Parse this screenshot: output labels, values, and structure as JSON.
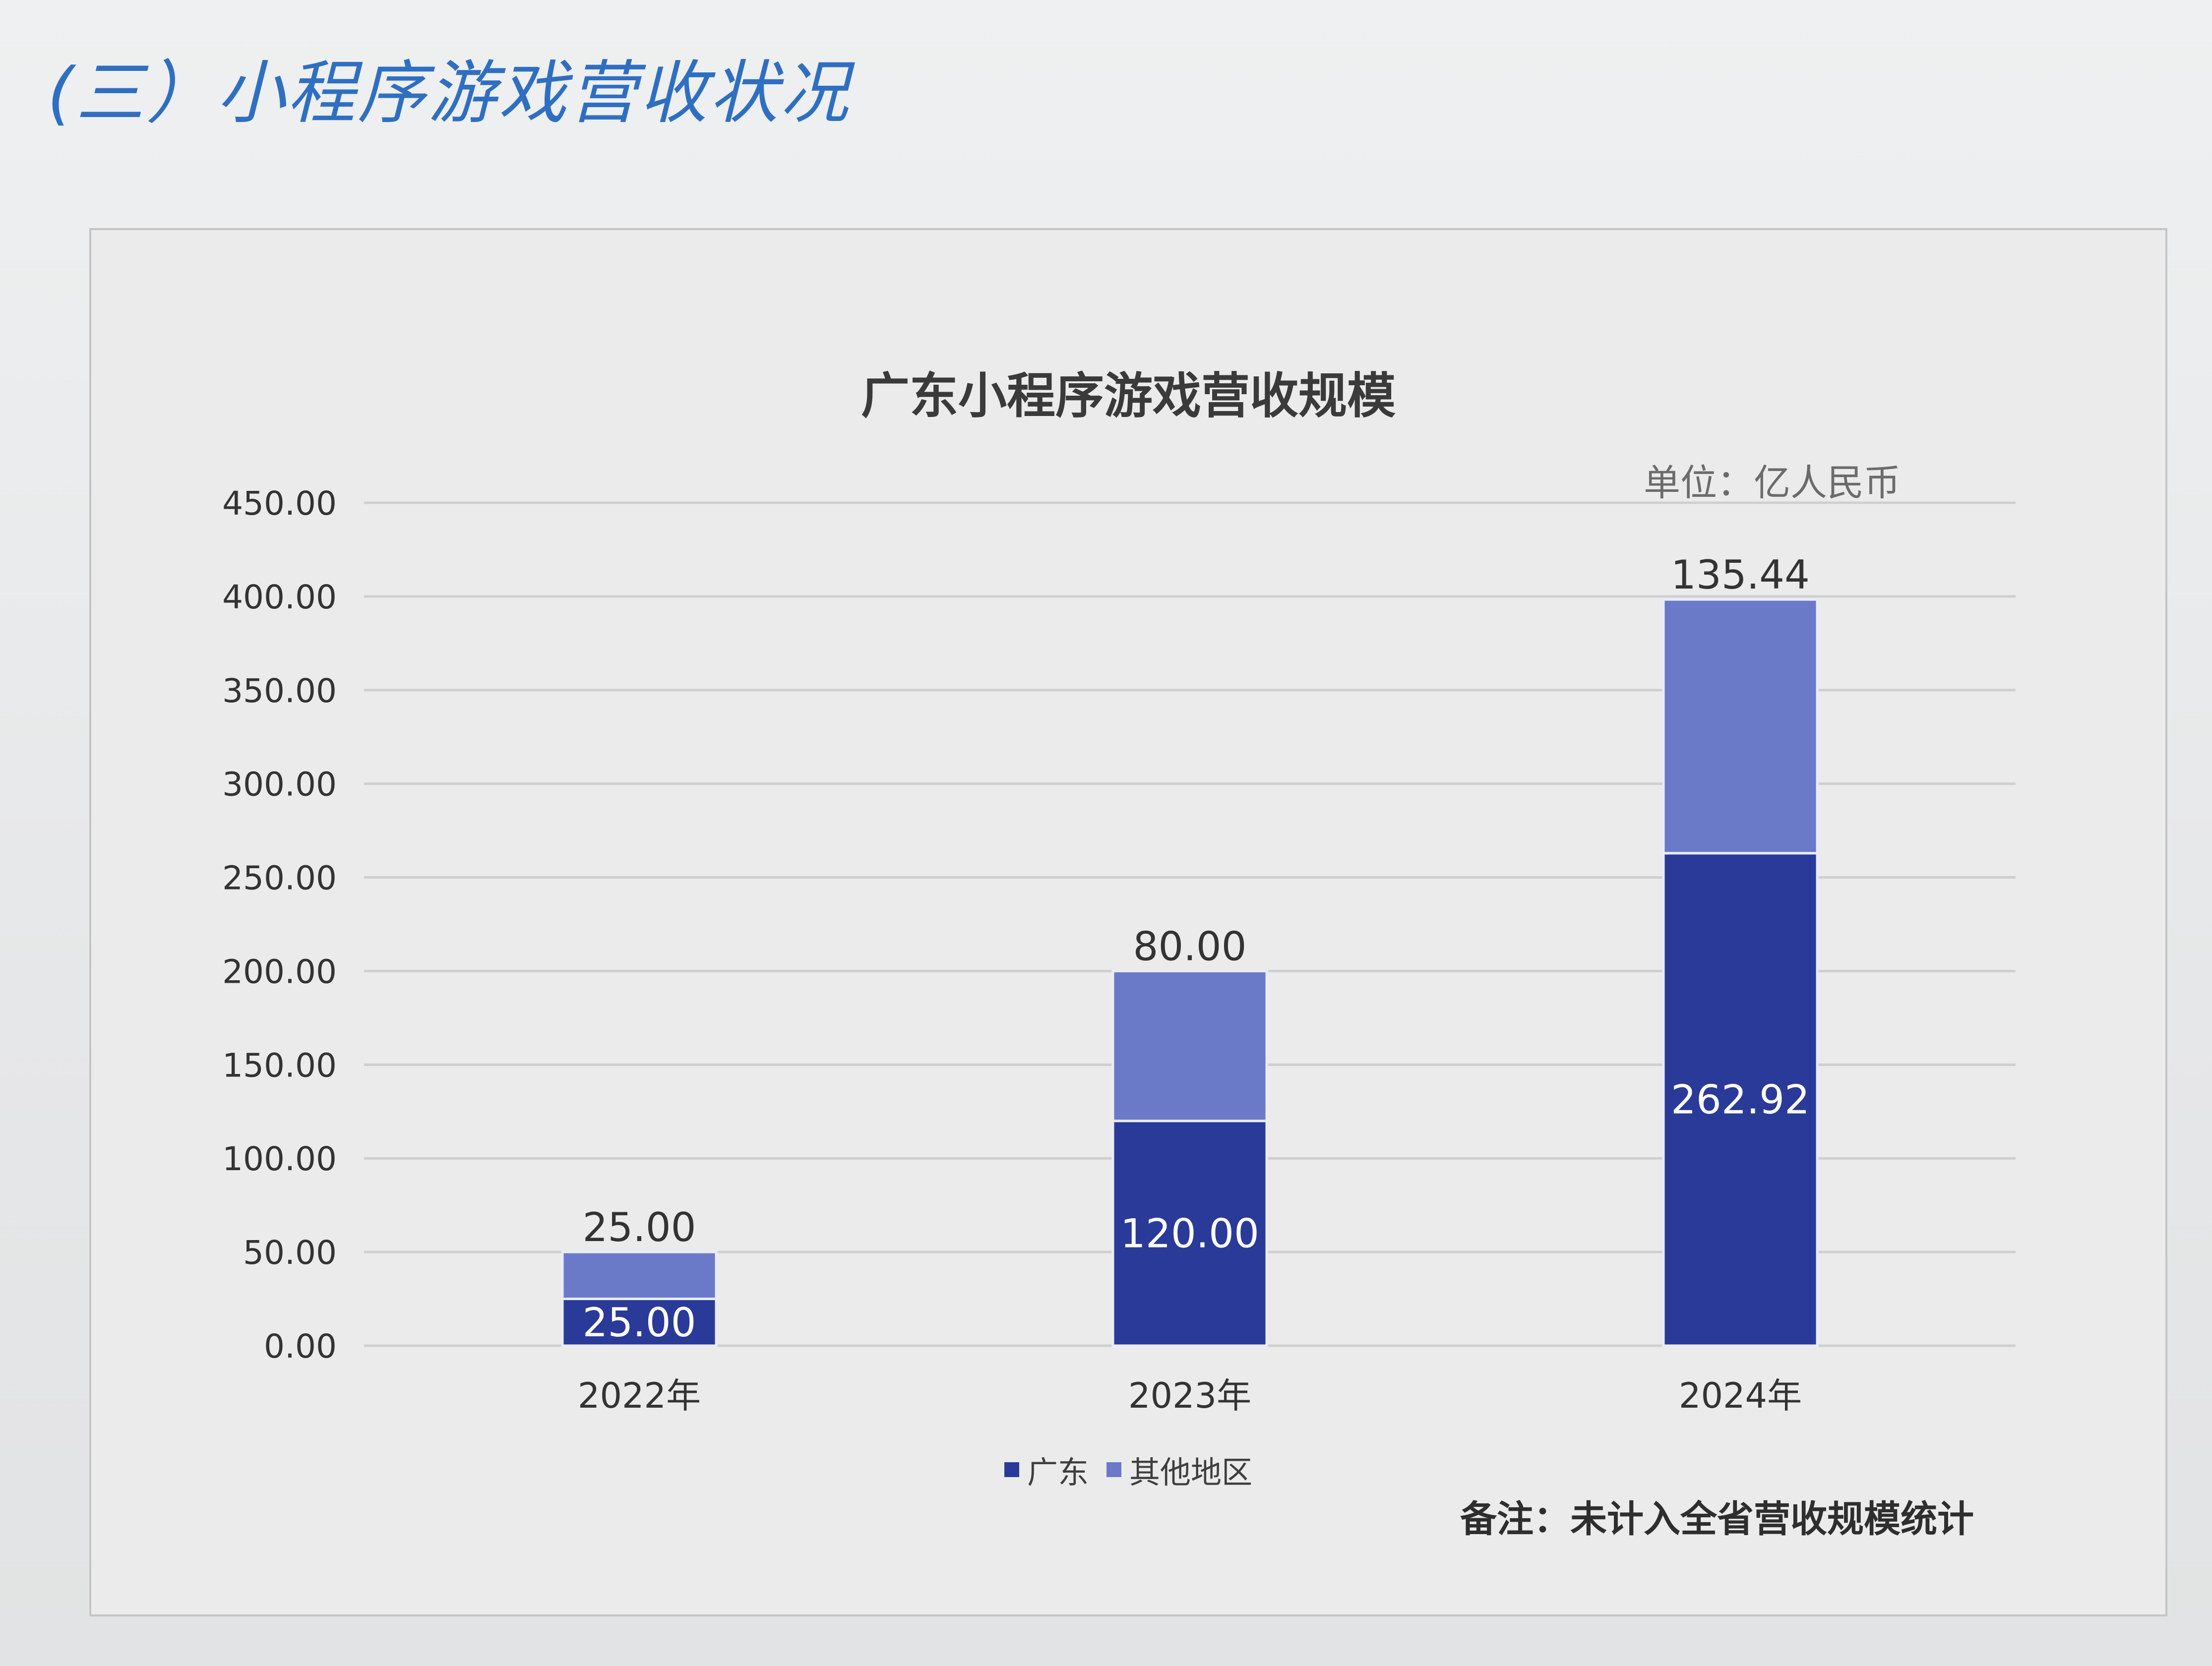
{
  "section_heading": "(三）小程序游戏营收状况",
  "unit_label": "单位：亿人民币",
  "note": "备注：未计入全省营收规模统计",
  "colors": {
    "guangdong": "#2a3a98",
    "other_regions": "#6a79c8",
    "grid": "#cfcfcf",
    "axis_text": "#333333"
  },
  "chart_data": {
    "type": "bar",
    "stacked": true,
    "title": "广东小程序游戏营收规模",
    "categories": [
      "2022年",
      "2023年",
      "2024年"
    ],
    "series": [
      {
        "name": "广东",
        "values": [
          25.0,
          120.0,
          262.92
        ],
        "labels": [
          "25.00",
          "120.00",
          "262.92"
        ]
      },
      {
        "name": "其他地区",
        "values": [
          25.0,
          80.0,
          135.44
        ],
        "labels": [
          "25.00",
          "80.00",
          "135.44"
        ]
      }
    ],
    "ylim": [
      0,
      450
    ],
    "yticks": [
      "0.00",
      "50.00",
      "100.00",
      "150.00",
      "200.00",
      "250.00",
      "300.00",
      "350.00",
      "400.00",
      "450.00"
    ],
    "grid": true,
    "legend_position": "bottom"
  }
}
